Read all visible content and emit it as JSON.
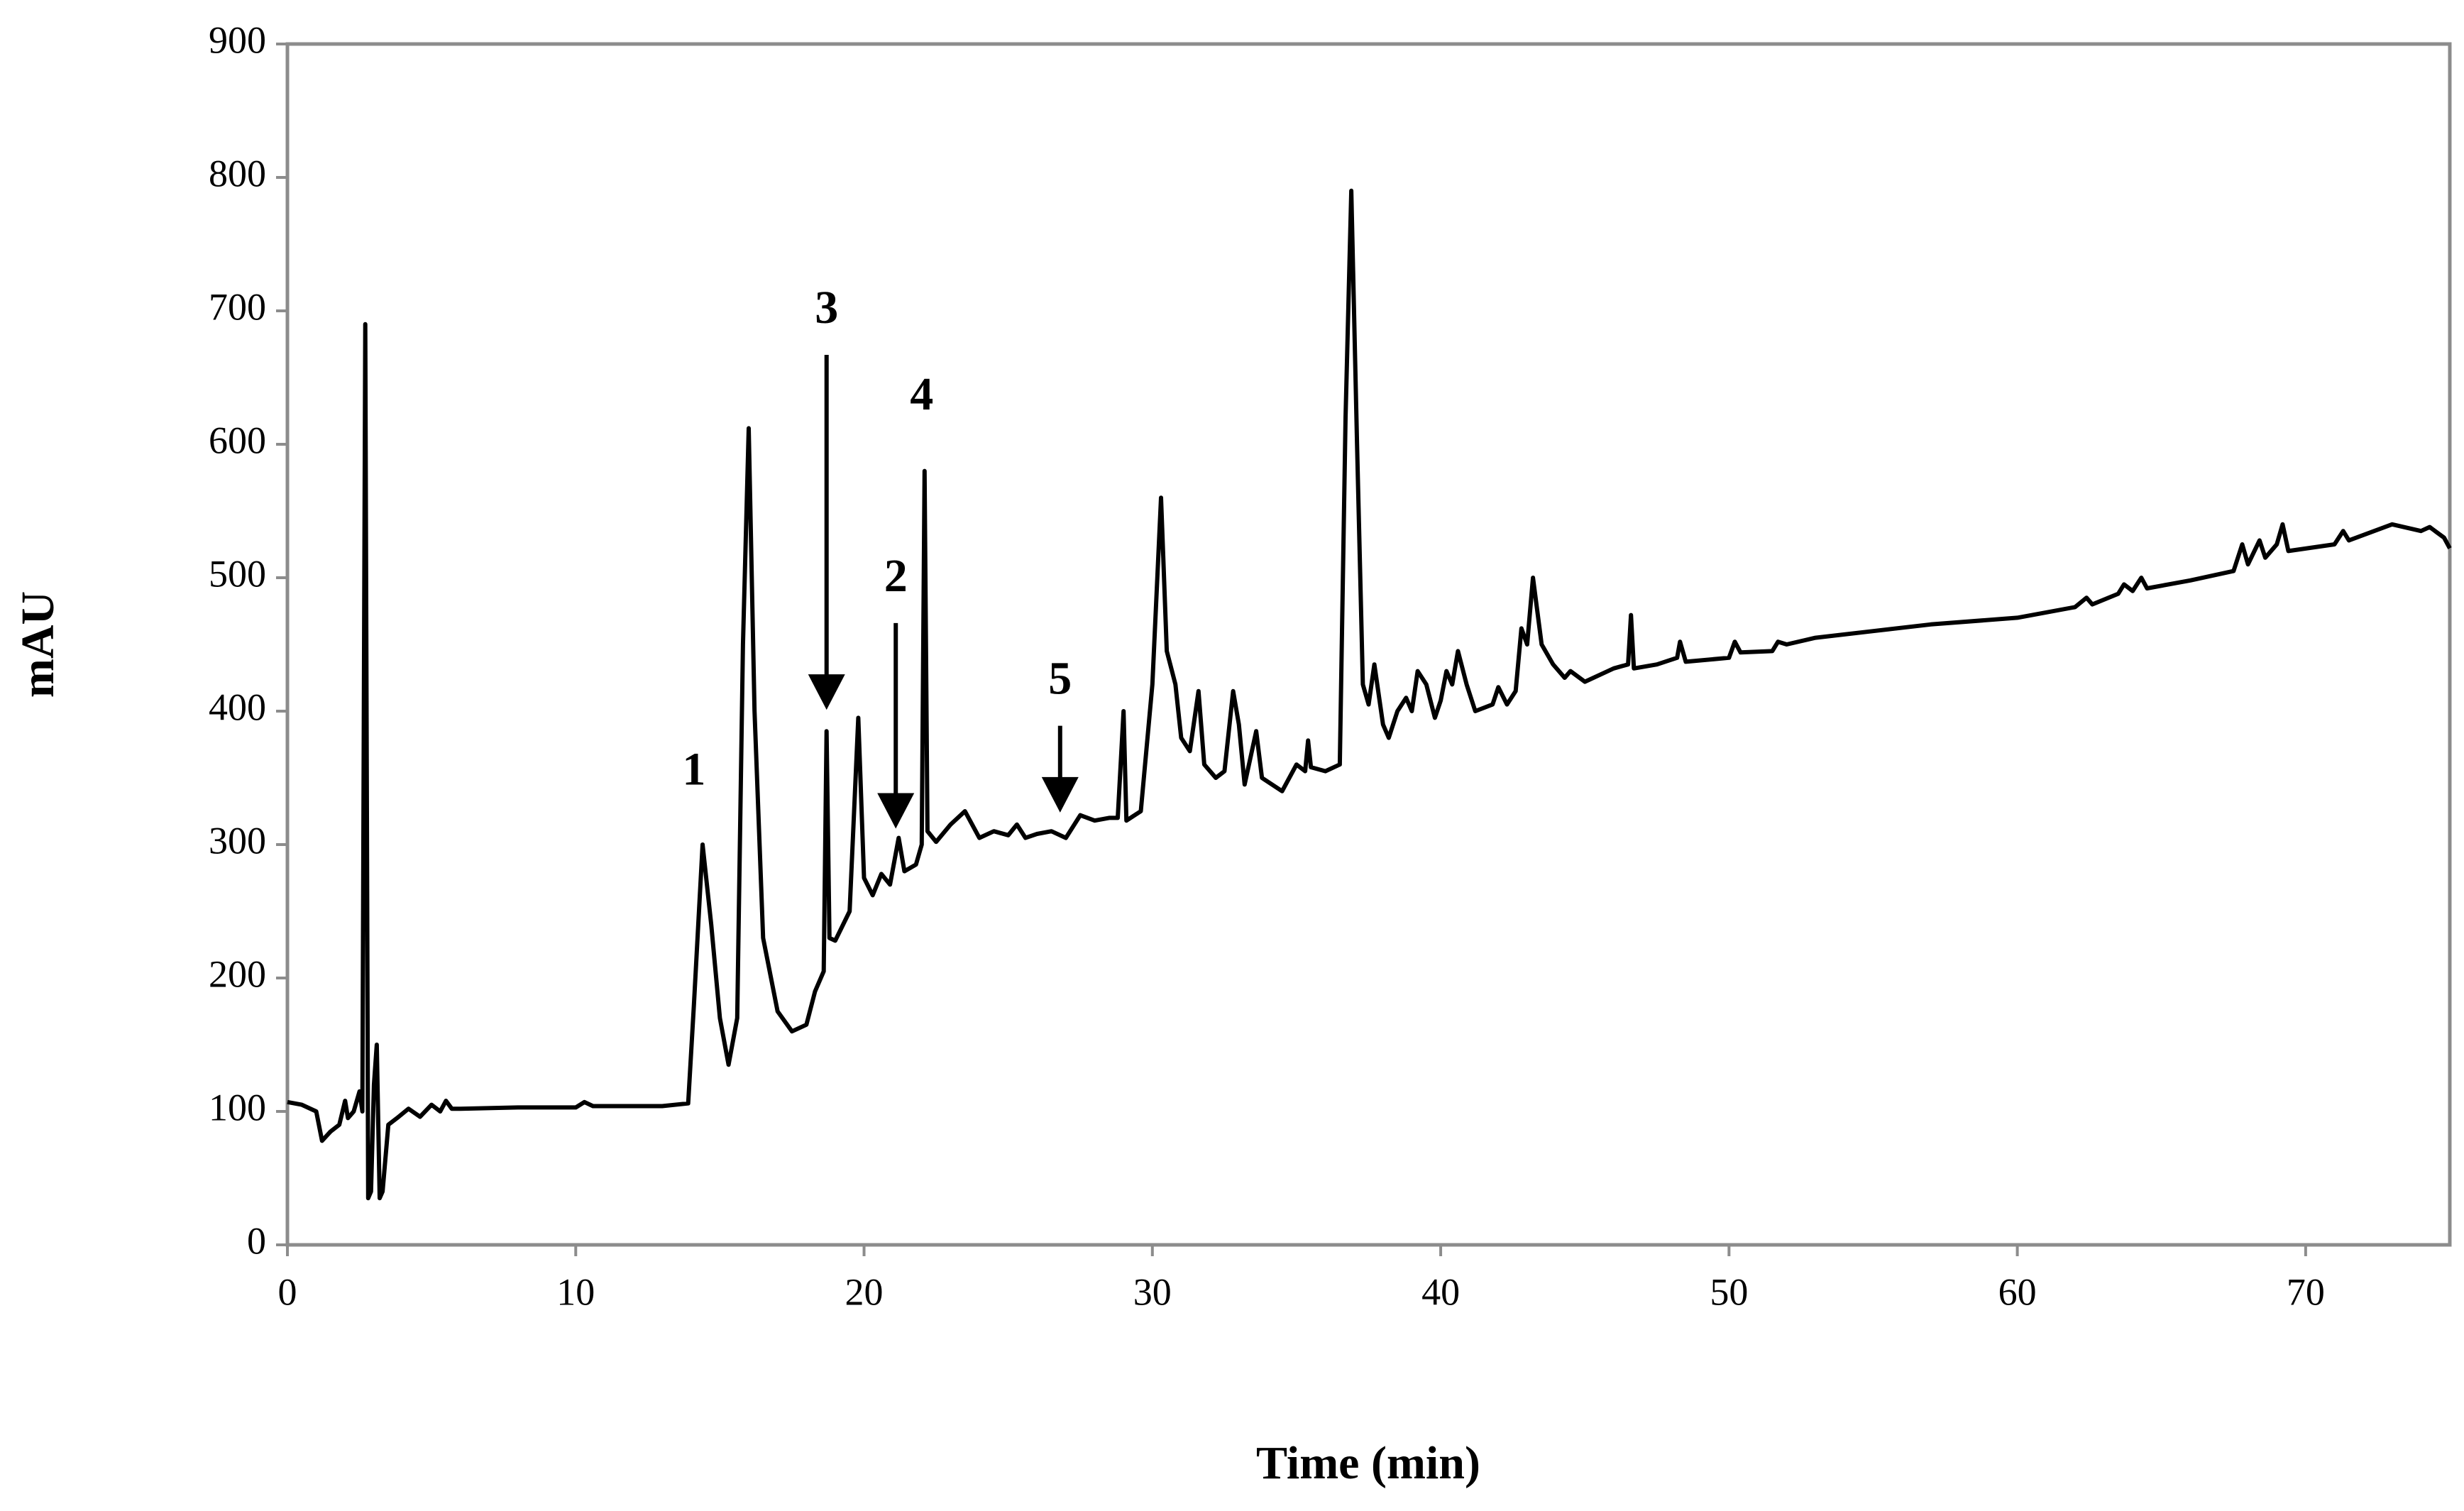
{
  "chart_data": {
    "type": "line",
    "x_label": "Time (min)",
    "y_label": "mAU",
    "color": "#000000",
    "xlim": [
      0,
      75
    ],
    "xticks": [
      0,
      10,
      20,
      30,
      40,
      50,
      60,
      70
    ],
    "ylim": [
      0,
      900
    ],
    "yticks": [
      0,
      100,
      200,
      300,
      400,
      500,
      600,
      700,
      800,
      900
    ],
    "grid": false,
    "x": [
      0,
      0.5,
      1,
      1.2,
      1.5,
      1.8,
      2,
      2.1,
      2.3,
      2.5,
      2.6,
      2.7,
      2.8,
      2.9,
      3.0,
      3.1,
      3.2,
      3.3,
      3.5,
      3.8,
      4.2,
      4.6,
      5,
      5.3,
      5.5,
      5.7,
      6,
      8,
      10,
      10.3,
      10.6,
      12,
      13,
      13.9,
      14.1,
      14.4,
      14.7,
      15,
      15.3,
      15.6,
      15.8,
      16,
      16.2,
      16.5,
      17,
      17.5,
      18,
      18.3,
      18.6,
      18.7,
      18.8,
      19,
      19.5,
      19.8,
      20,
      20.3,
      20.6,
      20.9,
      21.2,
      21.4,
      21.8,
      22,
      22.1,
      22.2,
      22.5,
      23,
      23.5,
      24,
      24.5,
      25,
      25.3,
      25.6,
      26,
      26.5,
      27,
      27.5,
      28,
      28.5,
      28.8,
      29,
      29.1,
      29.6,
      30,
      30.3,
      30.5,
      30.8,
      31,
      31.3,
      31.6,
      31.8,
      32.2,
      32.5,
      32.8,
      33,
      33.2,
      33.6,
      33.8,
      34.5,
      35,
      35.3,
      35.4,
      35.5,
      36,
      36.5,
      36.7,
      36.9,
      37.1,
      37.3,
      37.5,
      37.7,
      38,
      38.2,
      38.5,
      38.8,
      39,
      39.2,
      39.5,
      39.8,
      40,
      40.2,
      40.4,
      40.6,
      40.9,
      41.2,
      41.8,
      42,
      42.3,
      42.6,
      42.8,
      43,
      43.2,
      43.5,
      43.9,
      44.3,
      44.5,
      45,
      46,
      46.5,
      46.6,
      46.7,
      47.5,
      48.2,
      48.3,
      48.5,
      50,
      50.2,
      50.4,
      51.5,
      51.7,
      52,
      53,
      55,
      57,
      60,
      62,
      62.4,
      62.6,
      63.5,
      63.7,
      64,
      64.3,
      64.5,
      66,
      67.5,
      67.8,
      68,
      68.4,
      68.6,
      69,
      69.2,
      69.4,
      71,
      71.3,
      71.5,
      73,
      74,
      74.3,
      74.8,
      75
    ],
    "values": [
      107,
      105,
      100,
      78,
      85,
      90,
      108,
      95,
      100,
      115,
      100,
      690,
      35,
      40,
      120,
      150,
      35,
      40,
      90,
      95,
      102,
      96,
      105,
      100,
      108,
      102,
      102,
      103,
      103,
      107,
      104,
      104,
      104,
      106,
      180,
      300,
      240,
      170,
      135,
      170,
      450,
      612,
      400,
      230,
      175,
      160,
      165,
      190,
      205,
      385,
      230,
      228,
      250,
      395,
      275,
      262,
      278,
      270,
      305,
      280,
      285,
      300,
      580,
      310,
      302,
      315,
      325,
      305,
      310,
      307,
      315,
      305,
      308,
      310,
      305,
      322,
      318,
      320,
      320,
      400,
      318,
      325,
      420,
      560,
      445,
      420,
      380,
      370,
      415,
      360,
      350,
      355,
      415,
      390,
      345,
      385,
      350,
      340,
      360,
      355,
      378,
      358,
      355,
      360,
      620,
      790,
      600,
      420,
      405,
      435,
      390,
      380,
      400,
      410,
      400,
      430,
      420,
      395,
      408,
      430,
      420,
      445,
      420,
      400,
      405,
      418,
      405,
      415,
      462,
      450,
      500,
      450,
      435,
      425,
      430,
      422,
      432,
      435,
      472,
      432,
      435,
      440,
      452,
      437,
      440,
      452,
      444,
      445,
      452,
      450,
      455,
      460,
      465,
      470,
      478,
      485,
      480,
      488,
      495,
      490,
      500,
      492,
      498,
      505,
      525,
      510,
      528,
      515,
      525,
      540,
      520,
      525,
      535,
      528,
      540,
      535,
      538,
      530,
      522
    ],
    "annotations": [
      {
        "text": "1",
        "x": 14.1,
        "y": 345
      },
      {
        "text": "3",
        "x": 18.7,
        "y": 401,
        "arrow_from": 667
      },
      {
        "text": "2",
        "x": 21.1,
        "y": 312,
        "arrow_from": 466
      },
      {
        "text": "4",
        "x": 22.0,
        "y": 626
      },
      {
        "text": "5",
        "x": 26.8,
        "y": 324,
        "arrow_from": 389
      }
    ]
  }
}
